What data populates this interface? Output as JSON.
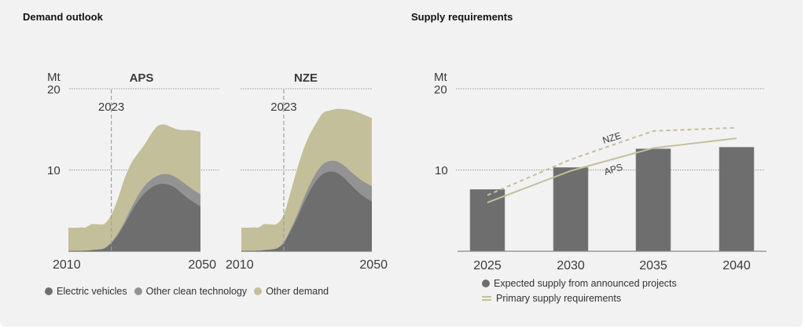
{
  "colors": {
    "background": "#f2f2f2",
    "electric_vehicles": "#6e6e6e",
    "other_clean_technology": "#939393",
    "other_demand": "#c4bf9b",
    "expected_supply": "#6e6e6e",
    "supply_requirement_line": "#c4bf9b",
    "grid": "#9a9a9a"
  },
  "demand": {
    "title": "Demand outlook",
    "unit_label": "Mt",
    "legend": [
      {
        "label": "Electric vehicles",
        "color_key": "electric_vehicles"
      },
      {
        "label": "Other clean technology",
        "color_key": "other_clean_technology"
      },
      {
        "label": "Other demand",
        "color_key": "other_demand"
      }
    ]
  },
  "supply": {
    "title": "Supply requirements",
    "unit_label": "Mt",
    "legend": [
      {
        "label": "Expected supply from announced projects",
        "icon": "dot"
      },
      {
        "label": "Primary supply requirements",
        "icon": "line"
      }
    ]
  },
  "chart_data": [
    {
      "type": "area",
      "title": "APS",
      "stacked": true,
      "ylabel": "Mt",
      "ylim": [
        0,
        20
      ],
      "yticks": [
        10,
        20
      ],
      "xlim": [
        2010,
        2050
      ],
      "xtick_labels": [
        "2010",
        "2050"
      ],
      "annotation": {
        "x": 2023,
        "label": "2023",
        "style": "dashed-vertical"
      },
      "grid": true,
      "x": [
        2010,
        2012,
        2014,
        2015,
        2016,
        2017,
        2019,
        2021,
        2023,
        2025,
        2027,
        2029,
        2031,
        2033,
        2035,
        2037,
        2039,
        2041,
        2043,
        2045,
        2047,
        2050
      ],
      "series": [
        {
          "name": "Electric vehicles",
          "values": [
            0,
            0,
            0.05,
            0.1,
            0.1,
            0.15,
            0.2,
            0.35,
            1.0,
            2.0,
            3.3,
            4.8,
            6.1,
            7.1,
            7.8,
            8.2,
            8.3,
            8.1,
            7.6,
            6.9,
            6.3,
            5.5
          ]
        },
        {
          "name": "Other clean technology",
          "values": [
            0,
            0,
            0,
            0,
            0,
            0,
            0.02,
            0.05,
            0.1,
            0.2,
            0.35,
            0.5,
            0.7,
            0.9,
            1.0,
            1.1,
            1.2,
            1.3,
            1.4,
            1.5,
            1.5,
            1.5
          ]
        },
        {
          "name": "Other demand",
          "values": [
            2.9,
            2.9,
            2.9,
            2.8,
            3.0,
            3.2,
            3.1,
            3.0,
            3.4,
            4.3,
            5.3,
            5.5,
            5.2,
            5.1,
            5.6,
            6.1,
            6.1,
            5.9,
            6.0,
            6.5,
            7.1,
            7.7
          ]
        }
      ],
      "totals_reference": {
        "2039": 15.6,
        "2050": 14.7
      }
    },
    {
      "type": "area",
      "title": "NZE",
      "stacked": true,
      "ylabel": "Mt",
      "ylim": [
        0,
        20
      ],
      "yticks": [
        10,
        20
      ],
      "xlim": [
        2010,
        2050
      ],
      "xtick_labels": [
        "2010",
        "2050"
      ],
      "annotation": {
        "x": 2023,
        "label": "2023",
        "style": "dashed-vertical"
      },
      "grid": true,
      "x": [
        2010,
        2012,
        2014,
        2015,
        2016,
        2017,
        2019,
        2021,
        2023,
        2025,
        2027,
        2029,
        2031,
        2033,
        2035,
        2037,
        2039,
        2041,
        2043,
        2045,
        2047,
        2050
      ],
      "series": [
        {
          "name": "Electric vehicles",
          "values": [
            0,
            0,
            0.05,
            0.1,
            0.1,
            0.15,
            0.2,
            0.35,
            1.0,
            2.4,
            4.0,
            5.8,
            7.4,
            8.7,
            9.5,
            9.8,
            9.7,
            9.2,
            8.4,
            7.6,
            6.9,
            6.1
          ]
        },
        {
          "name": "Other clean technology",
          "values": [
            0,
            0,
            0,
            0,
            0,
            0,
            0.02,
            0.05,
            0.1,
            0.25,
            0.4,
            0.6,
            0.8,
            1.0,
            1.2,
            1.3,
            1.4,
            1.5,
            1.6,
            1.7,
            1.8,
            1.9
          ]
        },
        {
          "name": "Other demand",
          "values": [
            2.9,
            2.9,
            2.9,
            2.8,
            3.0,
            3.2,
            3.1,
            3.0,
            3.4,
            4.5,
            5.6,
            6.1,
            6.2,
            6.1,
            6.3,
            6.2,
            6.4,
            6.8,
            7.4,
            7.9,
            8.2,
            8.4
          ]
        }
      ],
      "totals_reference": {
        "2039": 17.5,
        "2050": 16.4
      }
    },
    {
      "type": "bar",
      "title": "Supply requirements",
      "ylabel": "Mt",
      "ylim": [
        0,
        20
      ],
      "yticks": [
        10,
        20
      ],
      "grid": true,
      "categories": [
        "2025",
        "2030",
        "2035",
        "2040"
      ],
      "series": [
        {
          "name": "Expected supply from announced projects",
          "type": "bar",
          "values": [
            7.6,
            10.3,
            12.6,
            12.8
          ]
        },
        {
          "name": "NZE",
          "type": "line",
          "style": "dashed",
          "label": "NZE",
          "values": [
            6.9,
            11.3,
            14.8,
            15.2
          ]
        },
        {
          "name": "APS",
          "type": "line",
          "style": "solid",
          "label": "APS",
          "values": [
            6.0,
            9.9,
            12.7,
            13.9
          ]
        }
      ],
      "legend": [
        "Expected supply from announced projects",
        "Primary supply requirements"
      ],
      "legend_placement": "bottom"
    }
  ]
}
